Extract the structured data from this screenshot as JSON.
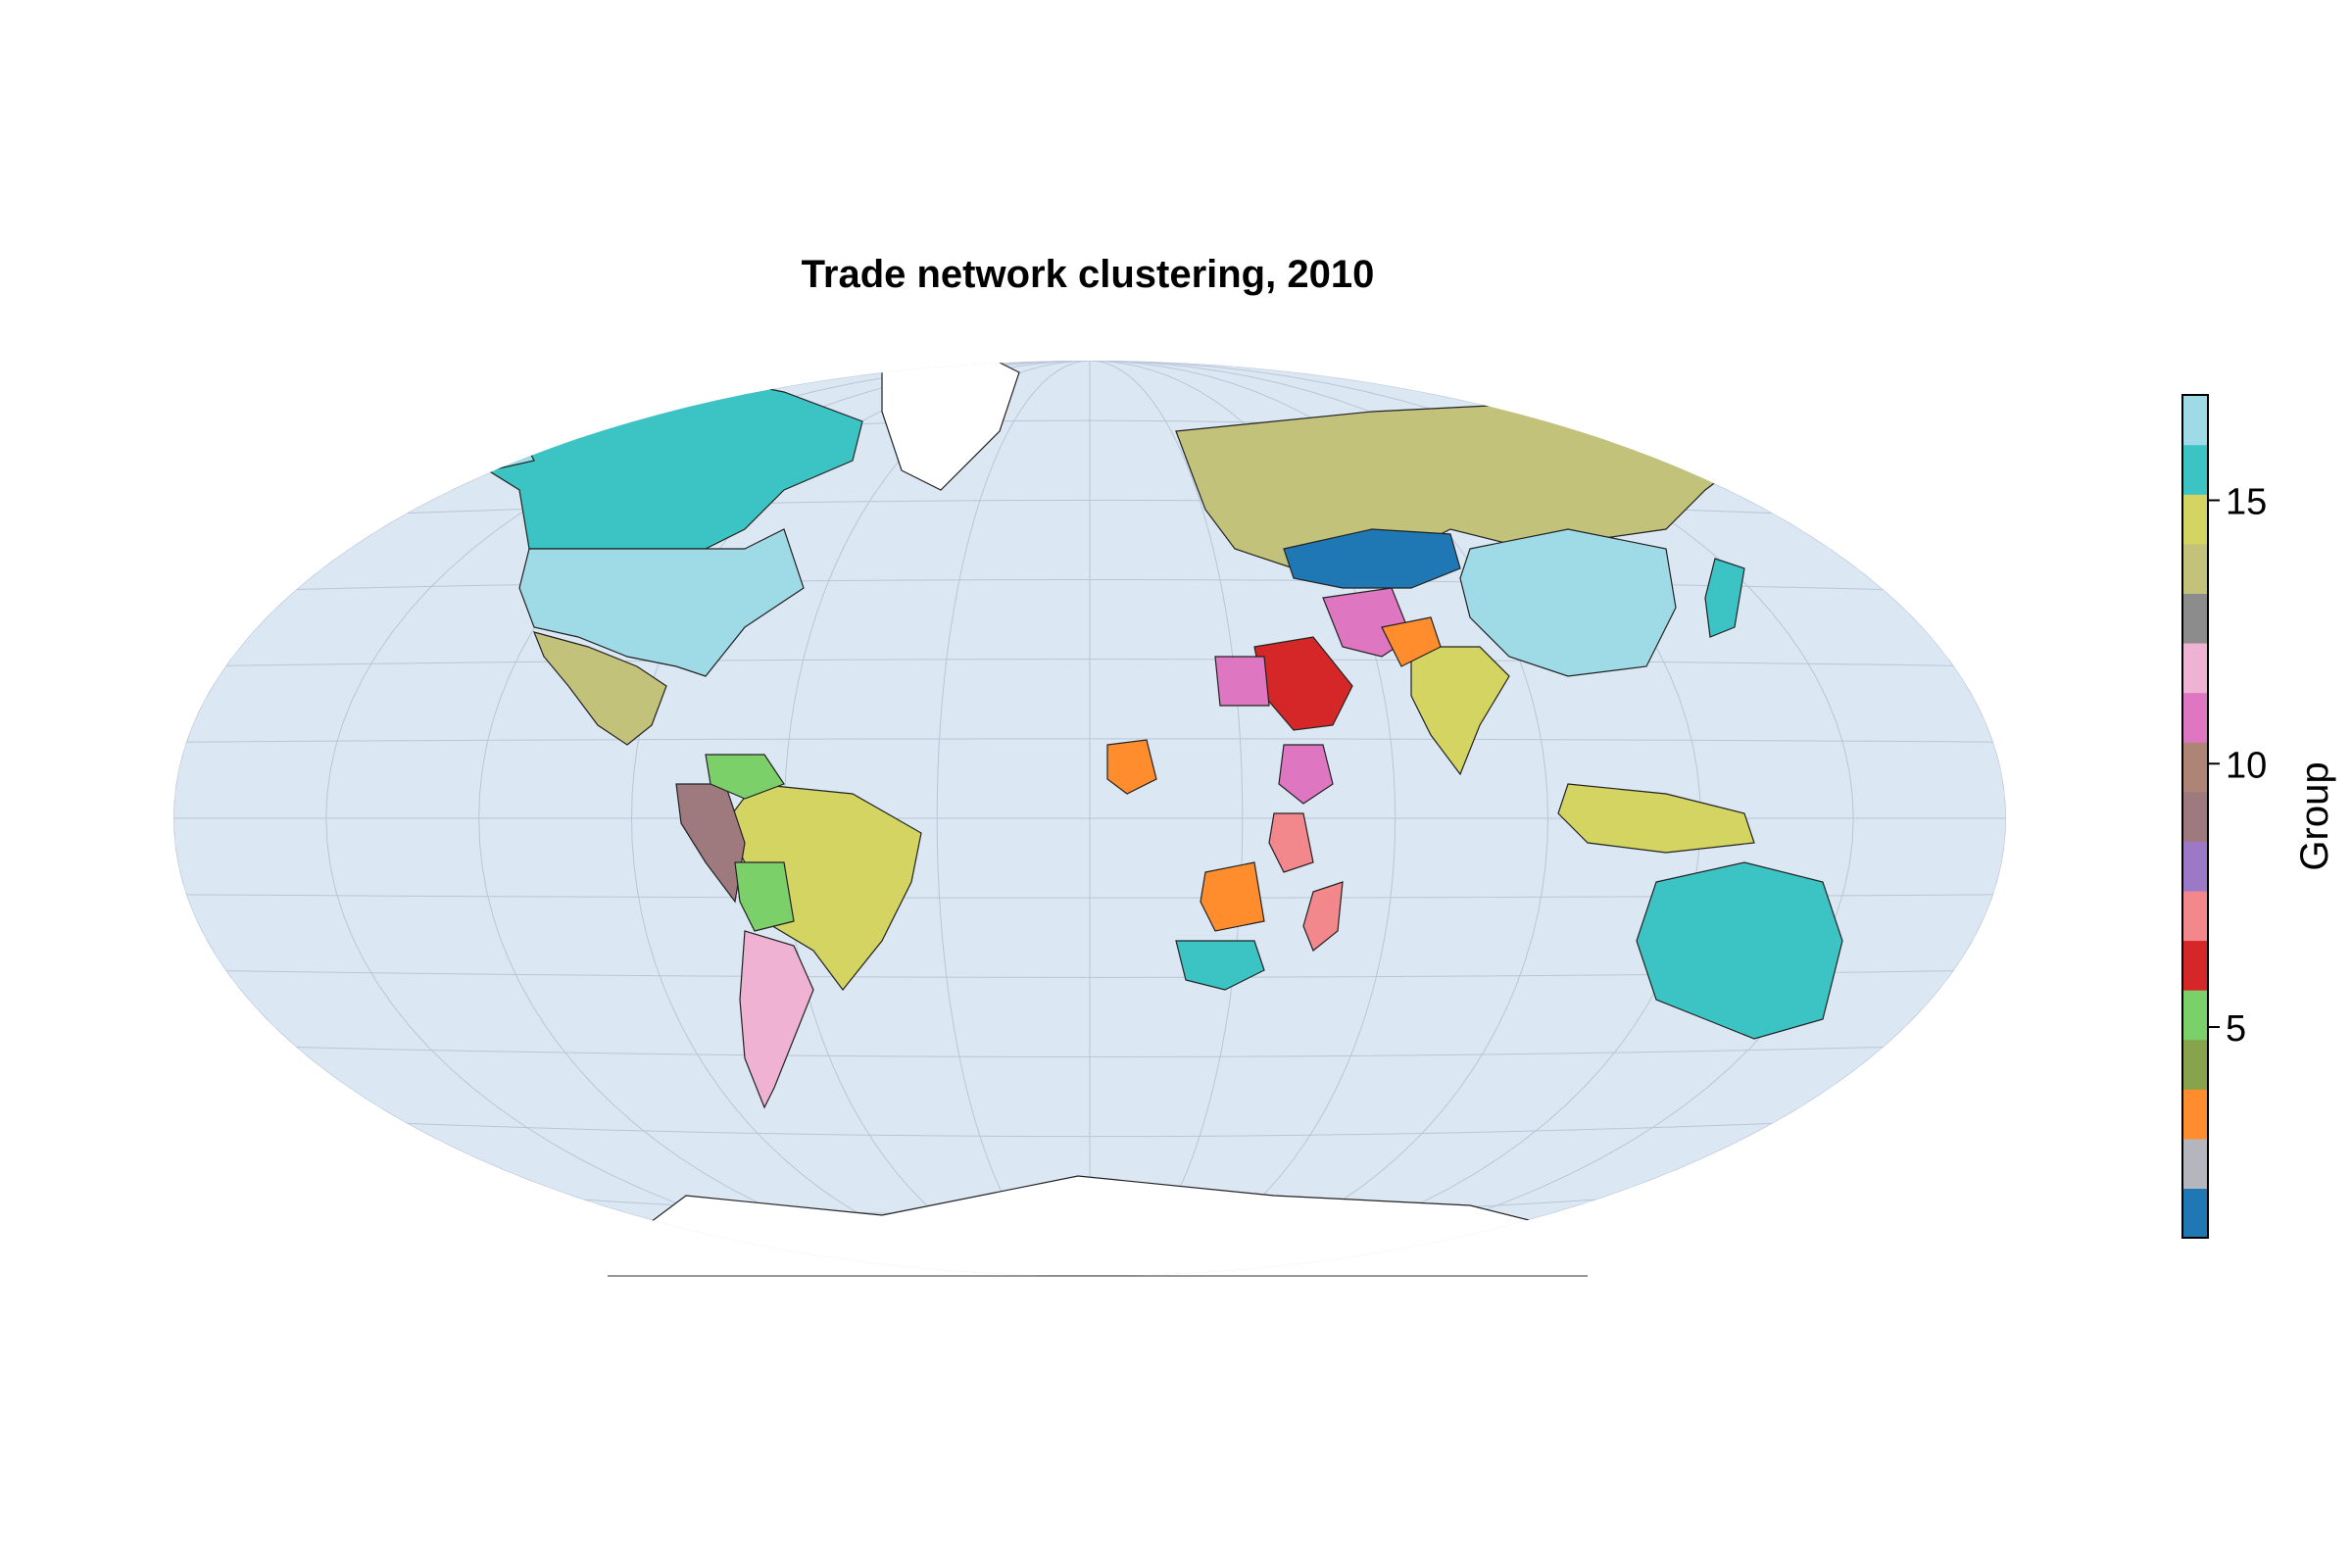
{
  "title": "Trade network clustering, 2010",
  "colorbar": {
    "label": "Group",
    "ticks": [
      {
        "value": 5,
        "label": "5"
      },
      {
        "value": 10,
        "label": "10"
      },
      {
        "value": 15,
        "label": "15"
      }
    ],
    "min": 1,
    "max": 17,
    "colors": [
      "#1f77b4",
      "#b5b5bd",
      "#ff8c2d",
      "#87a34b",
      "#7cd06a",
      "#d62728",
      "#f2888c",
      "#9b79c7",
      "#9e7a7f",
      "#ad8475",
      "#df76c2",
      "#f0b2d2",
      "#8c8c8c",
      "#c2c27a",
      "#d3d462",
      "#3cc4c4",
      "#9edbe6"
    ]
  },
  "map": {
    "ocean_color": "#dce7f4",
    "no_data_color": "#ffffff",
    "regions": [
      {
        "name": "Canada",
        "group": 16
      },
      {
        "name": "United States",
        "group": 17
      },
      {
        "name": "Alaska",
        "group": 17
      },
      {
        "name": "Mexico",
        "group": 14
      },
      {
        "name": "Brazil",
        "group": 15
      },
      {
        "name": "Argentina",
        "group": 12
      },
      {
        "name": "Peru",
        "group": 9
      },
      {
        "name": "Colombia",
        "group": 5
      },
      {
        "name": "Bolivia",
        "group": 5
      },
      {
        "name": "Russia",
        "group": 14
      },
      {
        "name": "Kazakhstan",
        "group": 1
      },
      {
        "name": "China",
        "group": 17
      },
      {
        "name": "India",
        "group": 15
      },
      {
        "name": "Saudi Arabia",
        "group": 6
      },
      {
        "name": "Iran",
        "group": 11
      },
      {
        "name": "Afghanistan",
        "group": 3
      },
      {
        "name": "Australia",
        "group": 16
      },
      {
        "name": "Egypt",
        "group": 11
      },
      {
        "name": "Nigeria",
        "group": 3
      },
      {
        "name": "Ethiopia",
        "group": 11
      },
      {
        "name": "Kenya",
        "group": 7
      },
      {
        "name": "South Africa",
        "group": 16
      },
      {
        "name": "Mozambique",
        "group": 3
      },
      {
        "name": "Madagascar",
        "group": 7
      },
      {
        "name": "Indonesia",
        "group": 15
      },
      {
        "name": "Japan",
        "group": 16
      },
      {
        "name": "Greenland",
        "group": 0
      },
      {
        "name": "Antarctica",
        "group": 0
      }
    ]
  }
}
